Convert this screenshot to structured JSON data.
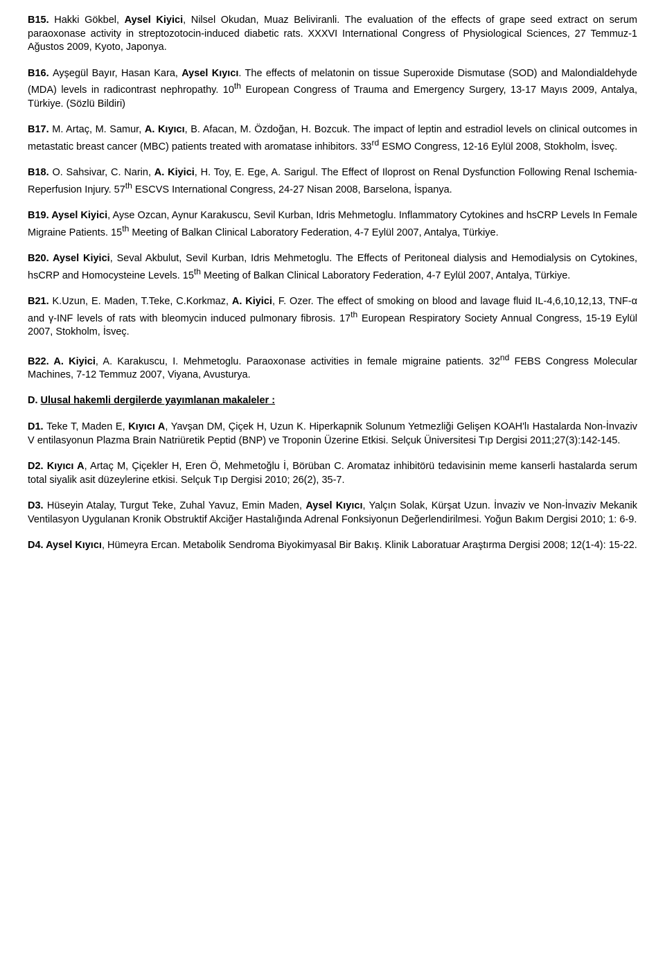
{
  "entries": [
    {
      "id": "B15.",
      "authors": "Hakki Gökbel, Aysel Kiyici, Nilsel Okudan, Muaz Beliviranli.",
      "authorsBold": "Aysel Kiyici",
      "text": "The evaluation of the effects of grape seed extract on serum paraoxonase activity in streptozotocin-induced diabetic rats. XXXVI International Congress of Physiological Sciences, 27 Temmuz-1 Ağustos 2009, Kyoto, Japonya."
    },
    {
      "id": "B16.",
      "authors": "Ayşegül Bayır, Hasan Kara, Aysel Kıyıcı.",
      "authorsBold": "Aysel Kıyıcı",
      "text": "The effects of melatonin on tissue Superoxide Dismutase (SOD) and Malondialdehyde (MDA) levels in radicontrast nephropathy. 10",
      "sup": "th",
      "text2": " European Congress of Trauma and Emergency Surgery, 13-17 Mayıs 2009, Antalya, Türkiye. (Sözlü Bildiri)"
    },
    {
      "id": "B17.",
      "authors": "M. Artaç, M. Samur, A. Kıyıcı, B. Afacan, M. Özdoğan, H. Bozcuk.",
      "authorsBold": "A. Kıyıcı",
      "text": "The impact of leptin and estradiol levels on clinical outcomes in metastatic breast cancer (MBC) patients treated with aromatase inhibitors. 33",
      "sup": "rd",
      "text2": " ESMO Congress, 12-16 Eylül 2008, Stokholm, İsveç."
    },
    {
      "id": "B18.",
      "authors": "O. Sahsivar, C. Narin, A. Kiyici, H. Toy, E. Ege, A. Sarigul.",
      "authorsBold": "A. Kiyici",
      "text": "The Effect of Iloprost on Renal Dysfunction Following Renal Ischemia-Reperfusion Injury. 57",
      "sup": "th",
      "text2": " ESCVS International Congress, 24-27 Nisan 2008, Barselona, İspanya."
    },
    {
      "id": "B19.",
      "authors": "Aysel Kiyici, Ayse Ozcan, Aynur Karakuscu, Sevil Kurban, Idris Mehmetoglu.",
      "authorsBold": "Aysel Kiyici",
      "text": "Inflammatory Cytokines and hsCRP Levels In Female Migraine Patients. 15",
      "sup": "th",
      "text2": " Meeting of Balkan Clinical Laboratory Federation,  4-7 Eylül 2007, Antalya, Türkiye."
    },
    {
      "id": "B20.",
      "authors": "Aysel Kiyici, Seval Akbulut, Sevil Kurban, Idris Mehmetoglu.",
      "authorsBold": "Aysel Kiyici",
      "text": "The Effects of Peritoneal dialysis and Hemodialysis on Cytokines, hsCRP and Homocysteine Levels. 15",
      "sup": "th",
      "text2": " Meeting of Balkan Clinical Laboratory Federation, 4-7 Eylül 2007, Antalya, Türkiye."
    },
    {
      "id": "B21.",
      "authors": "K.Uzun, E. Maden, T.Teke, C.Korkmaz, A. Kiyici, F. Ozer.",
      "authorsBold": "A. Kiyici",
      "text": "The effect of smoking on blood and lavage fluid IL-4,6,10,12,13, TNF-α and γ-INF levels of rats with bleomycin induced pulmonary fibrosis. 17",
      "sup": "th",
      "text2": " European Respiratory Society Annual Congress, 15-19 Eylül 2007, Stokholm, İsveç."
    },
    {
      "id": "B22.",
      "authors": "A. Kiyici,  A. Karakuscu, I. Mehmetoglu.",
      "authorsBold": "A. Kiyici",
      "text": "Paraoxonase activities in female migraine patients. 32",
      "sup": "nd",
      "text2": " FEBS Congress Molecular Machines,  7-12 Temmuz 2007, Viyana, Avusturya."
    }
  ],
  "sectionD": {
    "label": "D.",
    "title": "Ulusal hakemli dergilerde yayımlanan makaleler :"
  },
  "dEntries": [
    {
      "id": "D1.",
      "authors": "Teke T, Maden E, Kıyıcı A, Yavşan DM, Çiçek H, Uzun K.",
      "authorsBold": "Kıyıcı A",
      "text": "Hiperkapnik Solunum Yetmezliği Gelişen KOAH'lı Hastalarda Non-İnvaziv V entilasyonun Plazma Brain Natriüretik Peptid (BNP) ve Troponin Üzerine Etkisi. Selçuk Üniversitesi Tıp Dergisi 2011;27(3):142-145."
    },
    {
      "id": "D2.",
      "authors": "Kıyıcı A, Artaç M, Çiçekler H, Eren Ö, Mehmetoğlu İ, Börüban C.",
      "authorsBold": "Kıyıcı A",
      "text": "Aromataz inhibitörü tedavisinin meme kanserli hastalarda serum total siyalik asit düzeylerine etkisi. Selçuk Tıp Dergisi 2010; 26(2), 35-7."
    },
    {
      "id": "D3.",
      "authors": "Hüseyin Atalay, Turgut Teke, Zuhal Yavuz, Emin Maden, Aysel Kıyıcı, Yalçın Solak, Kürşat Uzun.",
      "authorsBold": "Aysel Kıyıcı",
      "text": "İnvaziv ve Non-İnvaziv Mekanik Ventilasyon Uygulanan Kronik Obstruktif Akciğer Hastalığında Adrenal Fonksiyonun Değerlendirilmesi. Yoğun Bakım Dergisi 2010; 1: 6-9."
    },
    {
      "id": "D4.",
      "authors": "Aysel Kıyıcı, Hümeyra Ercan.",
      "authorsBold": "Aysel Kıyıcı",
      "text": "Metabolik Sendroma Biyokimyasal Bir Bakış. Klinik Laboratuar Araştırma Dergisi 2008; 12(1-4): 15-22."
    }
  ]
}
